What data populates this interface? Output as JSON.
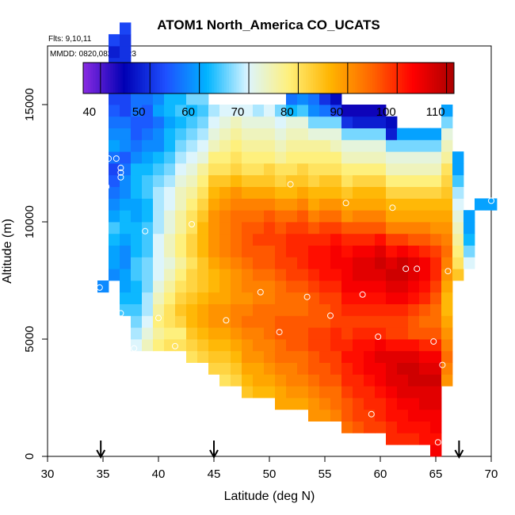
{
  "chart_data": {
    "type": "heatmap",
    "title": "ATOM1 North_America CO_UCATS",
    "flights_note": "Flts: 9,10,11",
    "dates_note": "MMDD: 0820,0822,0823",
    "xlabel": "Latitude (deg N)",
    "ylabel": "Altitude (m)",
    "xlim": [
      30,
      70
    ],
    "ylim": [
      0,
      17500
    ],
    "x_ticks": [
      "30",
      "35",
      "40",
      "45",
      "50",
      "55",
      "60",
      "65",
      "70"
    ],
    "y_ticks": [
      "0",
      "5000",
      "10000",
      "15000"
    ],
    "colorbar": {
      "range": [
        36.5,
        111.5
      ],
      "ticks": [
        "40",
        "50",
        "60",
        "70",
        "80",
        "90",
        "100",
        "110"
      ],
      "colors": [
        "#8a2be2",
        "#0000b4",
        "#1e50ff",
        "#00b4ff",
        "#dcf5ff",
        "#fff07a",
        "#ffb400",
        "#ff6600",
        "#ff0000",
        "#aa0000"
      ]
    },
    "cell_size": {
      "dlat": 1,
      "dalt": 500
    },
    "columns": [
      {
        "lat": 35,
        "alt0": 7000,
        "values": [
          58
        ]
      },
      {
        "lat": 36,
        "alt0": 7500,
        "values": [
          58,
          60,
          60,
          62,
          64,
          60,
          58,
          56,
          54,
          52,
          56,
          60,
          58,
          56,
          54,
          52,
          52,
          48,
          50,
          48,
          52
        ]
      },
      {
        "lat": 37,
        "alt0": 6000,
        "values": [
          64,
          62,
          60,
          60,
          58,
          58,
          60,
          62,
          62,
          60,
          58,
          58,
          56,
          54,
          58,
          58,
          56,
          52,
          52,
          54,
          52,
          50,
          50,
          50,
          52
        ]
      },
      {
        "lat": 38,
        "alt0": 4500,
        "values": [
          70,
          68,
          66,
          64,
          62,
          62,
          64,
          64,
          62,
          62,
          62,
          60,
          60,
          62,
          62,
          62,
          58,
          56,
          54,
          54,
          56,
          56,
          56
        ]
      },
      {
        "lat": 39,
        "alt0": 4500,
        "values": [
          74,
          72,
          70,
          68,
          68,
          66,
          66,
          66,
          64,
          64,
          64,
          62,
          62,
          64,
          64,
          62,
          60,
          58,
          56,
          54,
          54,
          56,
          58
        ]
      },
      {
        "lat": 40,
        "alt0": 4500,
        "values": [
          78,
          76,
          78,
          76,
          74,
          72,
          70,
          70,
          70,
          70,
          68,
          68,
          68,
          68,
          66,
          64,
          62,
          58,
          58,
          56,
          60,
          58
        ]
      },
      {
        "lat": 41,
        "alt0": 4500,
        "values": [
          80,
          78,
          80,
          80,
          78,
          76,
          74,
          72,
          74,
          74,
          72,
          72,
          70,
          70,
          68,
          66,
          64,
          62,
          62,
          60,
          62,
          62
        ]
      },
      {
        "lat": 42,
        "alt0": 4500,
        "values": [
          80,
          78,
          82,
          84,
          82,
          80,
          78,
          76,
          78,
          78,
          76,
          76,
          74,
          74,
          72,
          70,
          68,
          66,
          64,
          62,
          64,
          62
        ]
      },
      {
        "lat": 43,
        "alt0": 4000,
        "values": [
          80,
          82,
          84,
          86,
          86,
          84,
          82,
          82,
          80,
          82,
          82,
          80,
          80,
          78,
          76,
          74,
          72,
          70,
          68,
          66,
          64,
          62,
          66
        ]
      },
      {
        "lat": 44,
        "alt0": 4000,
        "values": [
          82,
          84,
          86,
          88,
          88,
          86,
          84,
          84,
          84,
          86,
          86,
          86,
          84,
          82,
          80,
          78,
          76,
          72,
          70,
          68,
          66,
          64,
          66
        ]
      },
      {
        "lat": 45,
        "alt0": 3500,
        "values": [
          82,
          84,
          86,
          88,
          90,
          90,
          88,
          86,
          86,
          88,
          90,
          90,
          90,
          90,
          88,
          86,
          84,
          80,
          78,
          74,
          72,
          70,
          68
        ]
      },
      {
        "lat": 46,
        "alt0": 3000,
        "values": [
          80,
          82,
          84,
          86,
          88,
          90,
          90,
          88,
          88,
          88,
          90,
          92,
          92,
          92,
          92,
          90,
          88,
          84,
          80,
          78,
          76,
          74,
          72,
          70
        ]
      },
      {
        "lat": 47,
        "alt0": 3000,
        "values": [
          82,
          84,
          86,
          88,
          90,
          92,
          92,
          90,
          90,
          90,
          92,
          94,
          94,
          94,
          94,
          92,
          90,
          86,
          82,
          80,
          78,
          76,
          74,
          70
        ]
      },
      {
        "lat": 48,
        "alt0": 2500,
        "values": [
          84,
          86,
          88,
          90,
          90,
          92,
          94,
          92,
          90,
          92,
          92,
          94,
          96,
          96,
          96,
          94,
          92,
          88,
          84,
          80,
          78,
          76,
          74,
          72,
          70
        ]
      },
      {
        "lat": 49,
        "alt0": 2500,
        "values": [
          86,
          88,
          88,
          90,
          92,
          92,
          94,
          94,
          92,
          92,
          94,
          96,
          96,
          98,
          96,
          94,
          92,
          88,
          84,
          80,
          78,
          76,
          74,
          72,
          68
        ]
      },
      {
        "lat": 50,
        "alt0": 2500,
        "values": [
          86,
          88,
          90,
          92,
          92,
          94,
          94,
          94,
          92,
          92,
          94,
          96,
          96,
          98,
          98,
          96,
          92,
          88,
          84,
          82,
          78,
          76,
          74,
          72,
          70
        ]
      },
      {
        "lat": 51,
        "alt0": 2000,
        "values": [
          88,
          88,
          90,
          92,
          94,
          94,
          96,
          96,
          94,
          94,
          94,
          96,
          98,
          98,
          98,
          96,
          94,
          90,
          86,
          82,
          80,
          76,
          74,
          72,
          70,
          66
        ]
      },
      {
        "lat": 52,
        "alt0": 2000,
        "values": [
          88,
          90,
          92,
          92,
          94,
          96,
          96,
          96,
          94,
          94,
          96,
          98,
          98,
          100,
          100,
          98,
          94,
          90,
          86,
          84,
          80,
          78,
          76,
          74,
          72,
          62,
          56
        ]
      },
      {
        "lat": 53,
        "alt0": 2000,
        "values": [
          88,
          90,
          92,
          94,
          94,
          96,
          96,
          96,
          94,
          94,
          96,
          98,
          100,
          100,
          100,
          98,
          96,
          92,
          88,
          84,
          82,
          78,
          76,
          74,
          72,
          64,
          58
        ]
      },
      {
        "lat": 54,
        "alt0": 1500,
        "values": [
          90,
          90,
          92,
          94,
          96,
          96,
          98,
          98,
          96,
          96,
          96,
          98,
          100,
          102,
          102,
          100,
          96,
          92,
          88,
          86,
          82,
          80,
          78,
          76,
          72,
          66,
          58,
          56
        ]
      },
      {
        "lat": 55,
        "alt0": 1500,
        "values": [
          90,
          92,
          94,
          96,
          96,
          98,
          98,
          98,
          96,
          96,
          98,
          100,
          102,
          102,
          102,
          100,
          98,
          94,
          90,
          86,
          84,
          80,
          78,
          76,
          72,
          66,
          56,
          50
        ]
      },
      {
        "lat": 56,
        "alt0": 1500,
        "values": [
          92,
          94,
          94,
          96,
          98,
          98,
          100,
          100,
          98,
          98,
          98,
          100,
          102,
          104,
          104,
          102,
          98,
          94,
          90,
          86,
          84,
          80,
          78,
          74,
          72,
          66,
          52,
          46
        ]
      },
      {
        "lat": 57,
        "alt0": 1000,
        "values": [
          94,
          96,
          96,
          98,
          100,
          100,
          102,
          100,
          98,
          98,
          100,
          102,
          104,
          104,
          104,
          102,
          100,
          96,
          90,
          88,
          84,
          80,
          78,
          74,
          72,
          66,
          50,
          44
        ]
      },
      {
        "lat": 58,
        "alt0": 1000,
        "values": [
          96,
          98,
          98,
          100,
          100,
          102,
          102,
          102,
          100,
          98,
          100,
          102,
          104,
          106,
          106,
          104,
          100,
          96,
          92,
          88,
          86,
          82,
          78,
          74,
          72,
          66,
          48,
          44
        ]
      },
      {
        "lat": 59,
        "alt0": 1000,
        "values": [
          98,
          98,
          100,
          100,
          102,
          104,
          104,
          102,
          100,
          98,
          100,
          102,
          104,
          106,
          106,
          104,
          100,
          96,
          92,
          88,
          86,
          82,
          78,
          74,
          72,
          66,
          48,
          44
        ]
      },
      {
        "lat": 60,
        "alt0": 1000,
        "values": [
          98,
          100,
          100,
          102,
          104,
          104,
          106,
          104,
          100,
          98,
          100,
          102,
          104,
          106,
          108,
          106,
          102,
          96,
          92,
          88,
          86,
          82,
          78,
          74,
          72,
          66,
          48,
          44
        ]
      },
      {
        "lat": 61,
        "alt0": 500,
        "values": [
          100,
          100,
          102,
          102,
          104,
          106,
          106,
          106,
          102,
          98,
          98,
          100,
          104,
          106,
          108,
          106,
          102,
          98,
          92,
          88,
          86,
          82,
          78,
          74,
          72,
          66,
          48,
          46
        ]
      },
      {
        "lat": 62,
        "alt0": 500,
        "values": [
          100,
          102,
          102,
          104,
          106,
          106,
          108,
          106,
          102,
          98,
          98,
          100,
          104,
          106,
          108,
          108,
          104,
          98,
          92,
          88,
          86,
          82,
          78,
          74,
          72,
          66,
          60
        ]
      },
      {
        "lat": 63,
        "alt0": 500,
        "values": [
          100,
          102,
          104,
          104,
          106,
          108,
          108,
          106,
          102,
          96,
          96,
          98,
          102,
          104,
          106,
          106,
          102,
          96,
          92,
          88,
          86,
          82,
          78,
          74,
          72,
          66,
          60
        ]
      },
      {
        "lat": 64,
        "alt0": 500,
        "values": [
          102,
          102,
          104,
          106,
          106,
          108,
          106,
          104,
          100,
          96,
          94,
          96,
          100,
          102,
          104,
          104,
          100,
          96,
          92,
          88,
          86,
          82,
          78,
          74,
          72,
          66,
          60
        ]
      },
      {
        "lat": 65,
        "alt0": 0,
        "values": [
          104,
          102,
          104,
          104,
          106,
          106,
          108,
          106,
          104,
          100,
          96,
          94,
          94,
          96,
          98,
          100,
          100,
          98,
          94,
          90,
          88,
          86,
          82,
          78,
          74,
          72,
          66,
          60
        ]
      },
      {
        "lat": 66,
        "alt0": 3000,
        "values": [
          90,
          92,
          94,
          92,
          90,
          88,
          86,
          86,
          88,
          90,
          92,
          94,
          92,
          90,
          88,
          86,
          84,
          82,
          80,
          76,
          74,
          72,
          66,
          60
        ]
      },
      {
        "lat": 67,
        "alt0": 7500,
        "values": [
          84,
          80,
          78,
          76,
          74,
          72,
          70,
          68,
          64,
          60,
          60
        ]
      },
      {
        "lat": 68,
        "alt0": 8000,
        "values": [
          70,
          66,
          62,
          60,
          60
        ]
      },
      {
        "lat": 69,
        "alt0": 10500,
        "values": [
          60
        ]
      },
      {
        "lat": 70,
        "alt0": 10500,
        "values": [
          60
        ]
      }
    ],
    "sample_points": [
      {
        "lat": 35.5,
        "alt": 12700
      },
      {
        "lat": 36.2,
        "alt": 12700
      },
      {
        "lat": 36.6,
        "alt": 12300
      },
      {
        "lat": 36.6,
        "alt": 12100
      },
      {
        "lat": 36.6,
        "alt": 11900
      },
      {
        "lat": 35.3,
        "alt": 11500
      },
      {
        "lat": 34.7,
        "alt": 7200
      },
      {
        "lat": 36.6,
        "alt": 6100
      },
      {
        "lat": 37.8,
        "alt": 4600
      },
      {
        "lat": 38.8,
        "alt": 9600
      },
      {
        "lat": 40.0,
        "alt": 5900
      },
      {
        "lat": 41.5,
        "alt": 4700
      },
      {
        "lat": 43.0,
        "alt": 9900
      },
      {
        "lat": 46.1,
        "alt": 5800
      },
      {
        "lat": 49.2,
        "alt": 7000
      },
      {
        "lat": 50.9,
        "alt": 5300
      },
      {
        "lat": 51.9,
        "alt": 11600
      },
      {
        "lat": 53.4,
        "alt": 6800
      },
      {
        "lat": 55.5,
        "alt": 6000
      },
      {
        "lat": 56.9,
        "alt": 10800
      },
      {
        "lat": 58.4,
        "alt": 6900
      },
      {
        "lat": 59.8,
        "alt": 5100
      },
      {
        "lat": 61.1,
        "alt": 10600
      },
      {
        "lat": 62.3,
        "alt": 8000
      },
      {
        "lat": 63.3,
        "alt": 8000
      },
      {
        "lat": 64.8,
        "alt": 4900
      },
      {
        "lat": 65.6,
        "alt": 3900
      },
      {
        "lat": 66.1,
        "alt": 7900
      },
      {
        "lat": 59.2,
        "alt": 1800
      },
      {
        "lat": 65.2,
        "alt": 600
      },
      {
        "lat": 70.0,
        "alt": 10900
      }
    ],
    "arrows_lat": [
      34.8,
      45.0,
      67.1
    ]
  }
}
